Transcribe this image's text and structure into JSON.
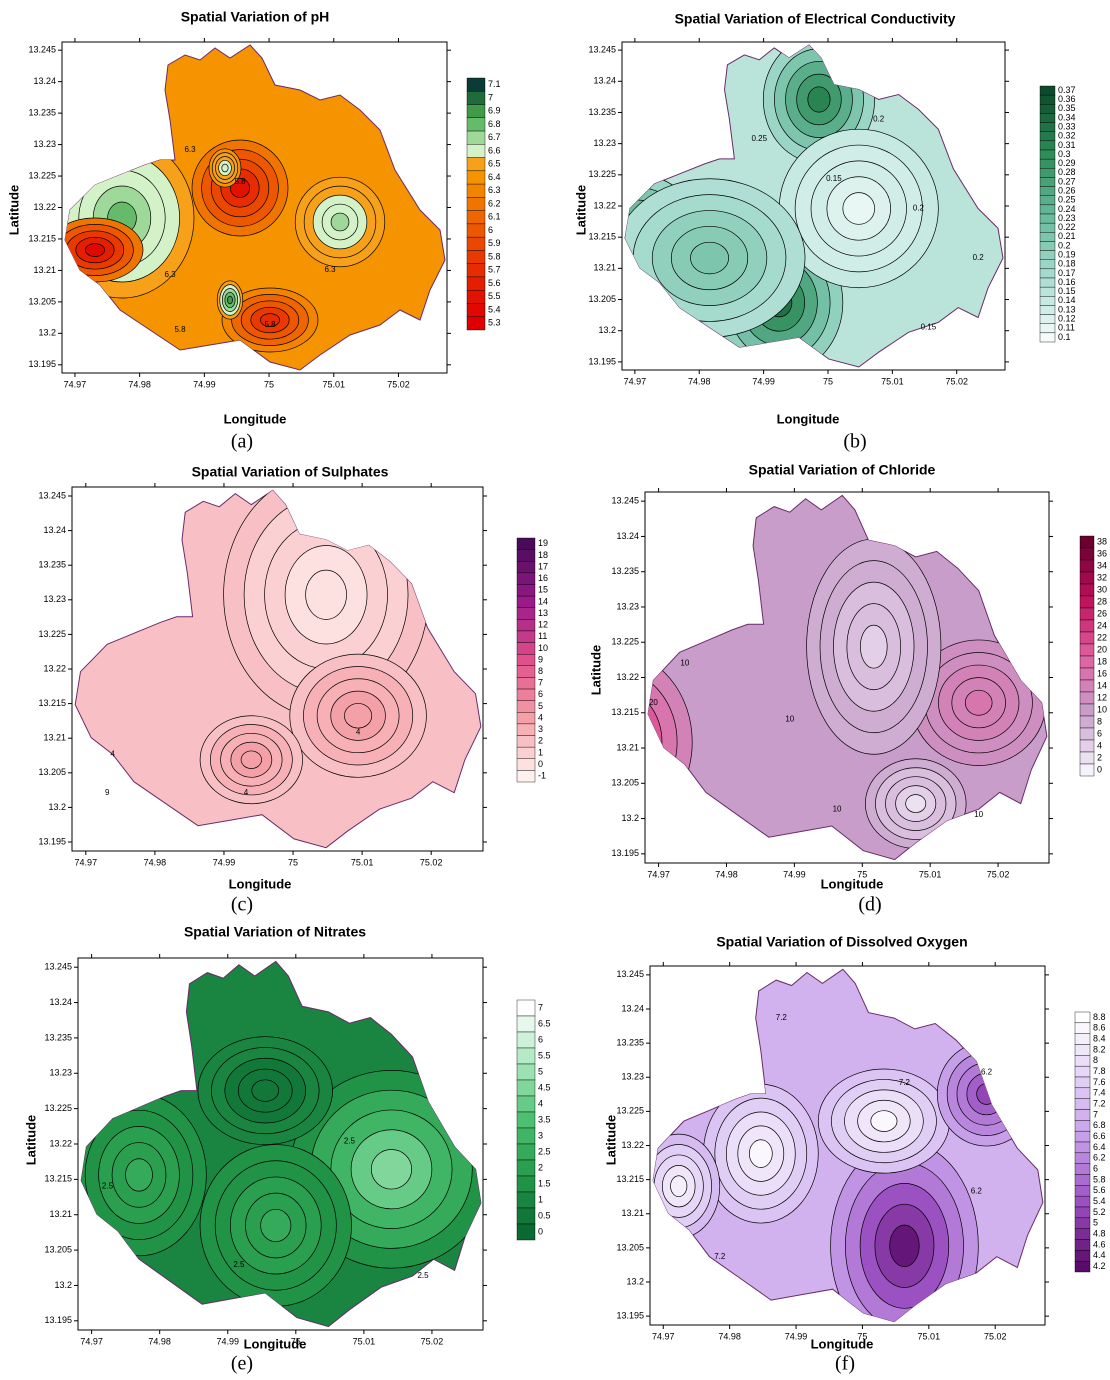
{
  "chart_data": [
    {
      "type": "contour",
      "title": "Spatial Variation of pH",
      "x_label": "Longitude",
      "y_label": "Latitude",
      "caption": "(a)",
      "xlim": [
        74.968,
        75.0275
      ],
      "xticks": [
        74.97,
        74.98,
        74.99,
        75,
        75.01,
        75.02
      ],
      "ylim": [
        13.1937,
        13.2463
      ],
      "yticks": [
        13.195,
        13.2,
        13.205,
        13.21,
        13.215,
        13.22,
        13.225,
        13.23,
        13.235,
        13.24,
        13.245
      ],
      "levels": [
        7.1,
        7,
        6.9,
        6.8,
        6.7,
        6.6,
        6.5,
        6.4,
        6.3,
        6.2,
        6.1,
        6,
        5.9,
        5.8,
        5.7,
        5.6,
        5.5,
        5.4,
        5.3
      ],
      "colors": [
        "#0b3b36",
        "#1f6b3a",
        "#3f9a4a",
        "#66bb6a",
        "#9ed99a",
        "#d4f2c8",
        "#f7a11a",
        "#f59300",
        "#f38400",
        "#f07500",
        "#ee6600",
        "#ec5700",
        "#ea4800",
        "#e83a00",
        "#e62c00",
        "#e41e00",
        "#e21200",
        "#e00800",
        "#de0000"
      ],
      "contour_labels": [
        6.3,
        5.8,
        6.3,
        6.3,
        5.8,
        5.8
      ]
    },
    {
      "type": "contour",
      "title": "Spatial Variation of Electrical Conductivity",
      "x_label": "Longitude",
      "y_label": "Latitude",
      "caption": "(b)",
      "xlim": [
        74.968,
        75.0275
      ],
      "xticks": [
        74.97,
        74.98,
        74.99,
        75,
        75.01,
        75.02
      ],
      "ylim": [
        13.1937,
        13.2463
      ],
      "yticks": [
        13.195,
        13.2,
        13.205,
        13.21,
        13.215,
        13.22,
        13.225,
        13.23,
        13.235,
        13.24,
        13.245
      ],
      "levels": [
        0.37,
        0.36,
        0.35,
        0.34,
        0.33,
        0.32,
        0.31,
        0.3,
        0.29,
        0.28,
        0.27,
        0.26,
        0.25,
        0.24,
        0.23,
        0.22,
        0.21,
        0.2,
        0.19,
        0.18,
        0.17,
        0.16,
        0.15,
        0.14,
        0.13,
        0.12,
        0.11,
        0.1
      ],
      "colors": [
        "#0b4a2a",
        "#2e8b57",
        "#66b89a",
        "#a6dccf",
        "#f4fbfa"
      ],
      "contour_labels": [
        0.2,
        0.25,
        0.15,
        0.2,
        0.2,
        0.15
      ]
    },
    {
      "type": "contour",
      "title": "Spatial Variation of Sulphates",
      "x_label": "Longitude",
      "caption": "(c)",
      "xlim": [
        74.968,
        75.0275
      ],
      "xticks": [
        74.97,
        74.98,
        74.99,
        75,
        75.01,
        75.02
      ],
      "ylim": [
        13.1937,
        13.2463
      ],
      "yticks": [
        13.195,
        13.2,
        13.205,
        13.21,
        13.215,
        13.22,
        13.225,
        13.23,
        13.235,
        13.24,
        13.245
      ],
      "levels": [
        19,
        18,
        17,
        16,
        15,
        14,
        13,
        12,
        11,
        10,
        9,
        8,
        7,
        6,
        5,
        4,
        3,
        2,
        1,
        0,
        -1
      ],
      "colors": [
        "#4a0a5a",
        "#9a1a8a",
        "#e0508a",
        "#f4a0a8",
        "#fff0ee"
      ],
      "contour_labels": [
        4,
        4,
        4,
        9
      ]
    },
    {
      "type": "contour",
      "title": "Spatial Variation of Chloride",
      "x_label": "Longitude",
      "y_label": "Latitude",
      "caption": "(d)",
      "xlim": [
        74.968,
        75.0275
      ],
      "xticks": [
        74.97,
        74.98,
        74.99,
        75,
        75.01,
        75.02
      ],
      "ylim": [
        13.1937,
        13.2463
      ],
      "yticks": [
        13.195,
        13.2,
        13.205,
        13.21,
        13.215,
        13.22,
        13.225,
        13.23,
        13.235,
        13.24,
        13.245
      ],
      "levels": [
        38,
        36,
        34,
        32,
        30,
        28,
        26,
        24,
        22,
        20,
        18,
        16,
        14,
        12,
        10,
        8,
        6,
        4,
        2,
        0
      ],
      "colors": [
        "#6a0030",
        "#c0105a",
        "#e060a0",
        "#c8a0cc",
        "#f6f2fa"
      ],
      "contour_labels": [
        10,
        10,
        10,
        10,
        20
      ]
    },
    {
      "type": "contour",
      "title": "Spatial Variation of Nitrates",
      "x_label": "Longitude",
      "y_label": "Latitude",
      "caption": "(e)",
      "xlim": [
        74.968,
        75.0275
      ],
      "xticks": [
        74.97,
        74.98,
        74.99,
        75,
        75.01,
        75.02
      ],
      "ylim": [
        13.1937,
        13.2463
      ],
      "yticks": [
        13.195,
        13.2,
        13.205,
        13.21,
        13.215,
        13.22,
        13.225,
        13.23,
        13.235,
        13.24,
        13.245
      ],
      "levels": [
        7,
        6.5,
        6,
        5.5,
        5,
        4.5,
        4,
        3.5,
        3,
        2.5,
        2,
        1.5,
        1,
        0.5,
        0
      ],
      "colors": [
        "#ffffff",
        "#a8e6bc",
        "#4cc070",
        "#239a4a",
        "#0b6a32"
      ],
      "contour_labels": [
        2.5,
        2.5,
        2.5,
        2.5
      ]
    },
    {
      "type": "contour",
      "title": "Spatial Variation of Dissolved Oxygen",
      "x_label": "Longitude",
      "y_label": "Latitude",
      "caption": "(f)",
      "xlim": [
        74.968,
        75.0275
      ],
      "xticks": [
        74.97,
        74.98,
        74.99,
        75,
        75.01,
        75.02
      ],
      "ylim": [
        13.1937,
        13.2463
      ],
      "yticks": [
        13.195,
        13.2,
        13.205,
        13.21,
        13.215,
        13.22,
        13.225,
        13.23,
        13.235,
        13.24,
        13.245
      ],
      "levels": [
        8.8,
        8.6,
        8.4,
        8.2,
        8,
        7.8,
        7.6,
        7.4,
        7.2,
        7,
        6.8,
        6.6,
        6.4,
        6.2,
        6,
        5.8,
        5.6,
        5.4,
        5.2,
        5,
        4.8,
        4.6,
        4.4,
        4.2
      ],
      "colors": [
        "#ffffff",
        "#e2d0f6",
        "#c49ae8",
        "#9a4ec0",
        "#5a0a6a"
      ],
      "contour_labels": [
        7.2,
        6.2,
        7.2,
        6.2,
        7.2
      ]
    }
  ]
}
